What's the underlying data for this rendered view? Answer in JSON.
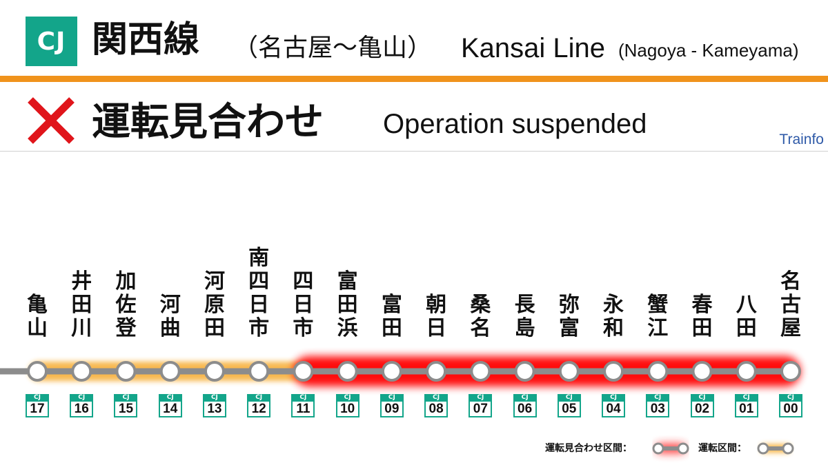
{
  "header": {
    "badge": "CJ",
    "line_name": "関西線",
    "line_range": "（名古屋～亀山）",
    "line_en": "Kansai Line",
    "line_en_sub": "(Nagoya - Kameyama)"
  },
  "status": {
    "icon": "cross-icon",
    "label_jp": "運転見合わせ",
    "label_en": "Operation suspended",
    "brand": "Trainfo"
  },
  "colors": {
    "line": "#13a58a",
    "accent": "#f0931c",
    "suspended": "#ff0000",
    "operating": "#f5a623",
    "track": "#8c8c8c"
  },
  "stations": [
    {
      "name": "亀山",
      "code": "17",
      "prefix": "CJ"
    },
    {
      "name": "井田川",
      "code": "16",
      "prefix": "CJ"
    },
    {
      "name": "加佐登",
      "code": "15",
      "prefix": "CJ"
    },
    {
      "name": "河曲",
      "code": "14",
      "prefix": "CJ"
    },
    {
      "name": "河原田",
      "code": "13",
      "prefix": "CJ"
    },
    {
      "name": "南四日市",
      "code": "12",
      "prefix": "CJ"
    },
    {
      "name": "四日市",
      "code": "11",
      "prefix": "CJ"
    },
    {
      "name": "富田浜",
      "code": "10",
      "prefix": "CJ"
    },
    {
      "name": "富田",
      "code": "09",
      "prefix": "CJ"
    },
    {
      "name": "朝日",
      "code": "08",
      "prefix": "CJ"
    },
    {
      "name": "桑名",
      "code": "07",
      "prefix": "CJ"
    },
    {
      "name": "長島",
      "code": "06",
      "prefix": "CJ"
    },
    {
      "name": "弥富",
      "code": "05",
      "prefix": "CJ"
    },
    {
      "name": "永和",
      "code": "04",
      "prefix": "CJ"
    },
    {
      "name": "蟹江",
      "code": "03",
      "prefix": "CJ"
    },
    {
      "name": "春田",
      "code": "02",
      "prefix": "CJ"
    },
    {
      "name": "八田",
      "code": "01",
      "prefix": "CJ"
    },
    {
      "name": "名古屋",
      "code": "00",
      "prefix": "CJ"
    }
  ],
  "segments": {
    "operating": {
      "from": "CJ17",
      "to": "CJ11"
    },
    "suspended": {
      "from": "CJ11",
      "to": "CJ00"
    }
  },
  "legend": {
    "suspended_label": "運転見合わせ区間：",
    "operating_label": "運転区間："
  }
}
